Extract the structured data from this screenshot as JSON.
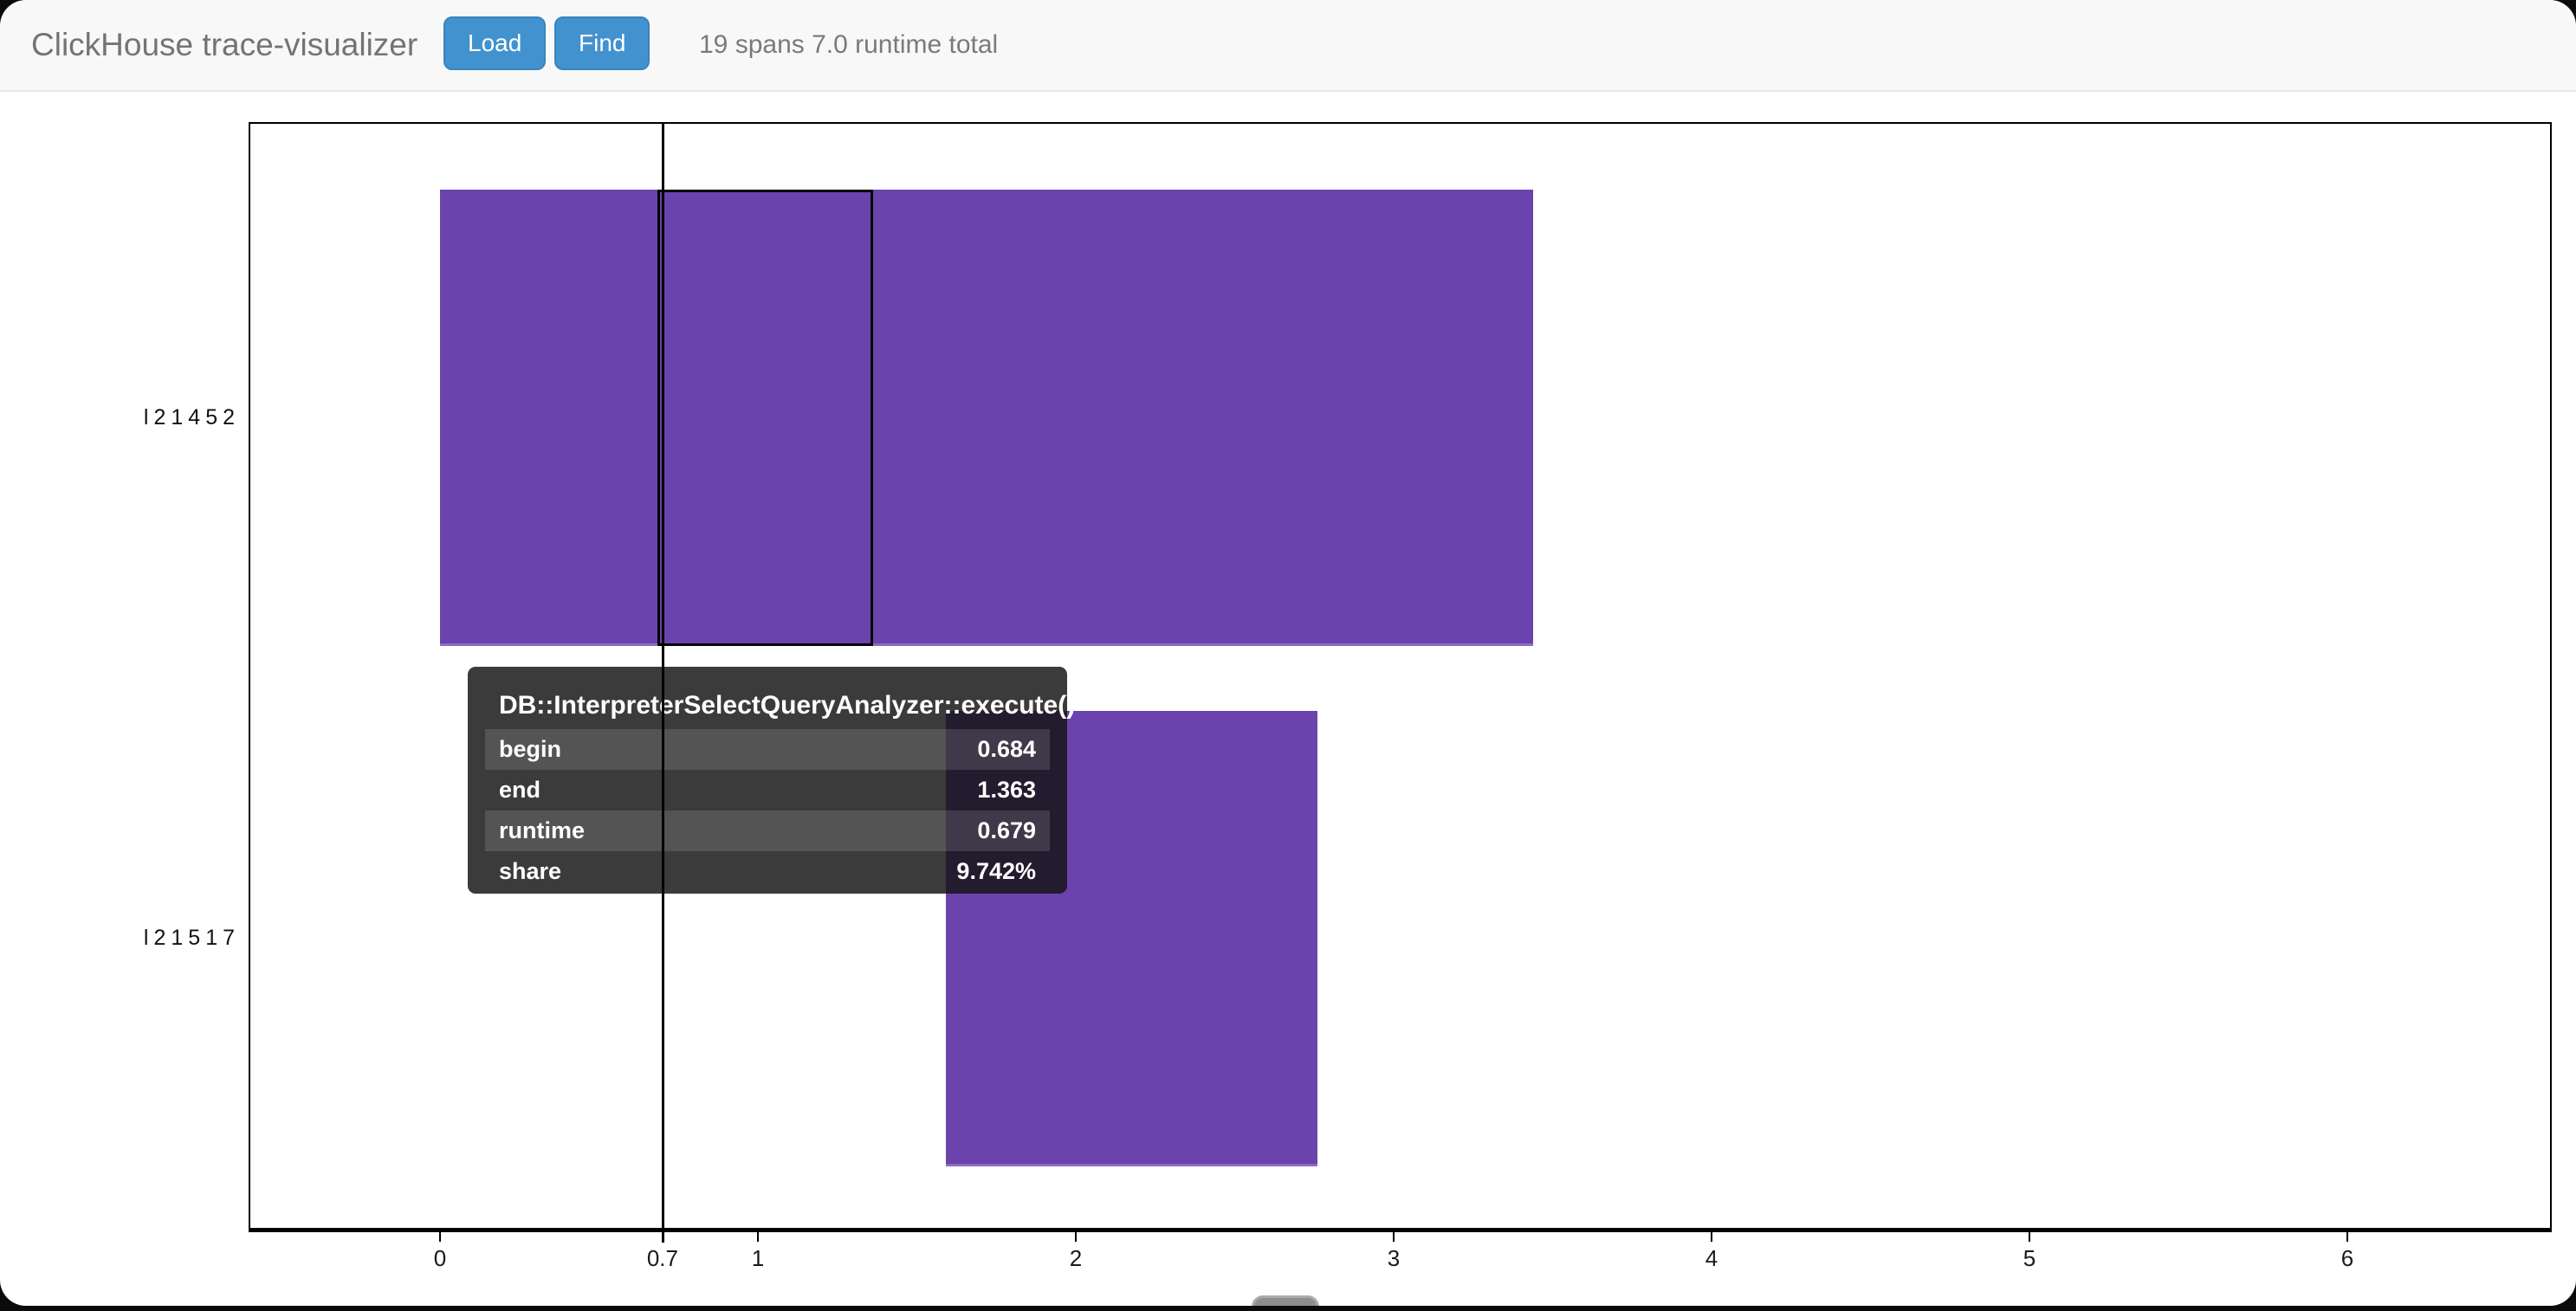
{
  "app": {
    "title": "ClickHouse trace-visualizer",
    "buttons": [
      {
        "label": "Load"
      },
      {
        "label": "Find"
      }
    ],
    "status": "19 spans 7.0 runtime total"
  },
  "tooltip": {
    "title": "DB::InterpreterSelectQueryAnalyzer::execute()",
    "rows": [
      {
        "label": "begin",
        "value": "0.684"
      },
      {
        "label": "end",
        "value": "1.363"
      },
      {
        "label": "runtime",
        "value": "0.679"
      },
      {
        "label": "share",
        "value": "9.742%"
      }
    ]
  },
  "chart_data": {
    "type": "bar",
    "subtype": "gantt-trace",
    "title": "",
    "xlabel": "",
    "ylabel": "",
    "axis": {
      "min": -0.6,
      "max": 6.64,
      "grid": false
    },
    "x_ticks": [
      {
        "v": 0,
        "label": "0"
      },
      {
        "v": 1,
        "label": "1"
      },
      {
        "v": 2,
        "label": "2"
      },
      {
        "v": 3,
        "label": "3"
      },
      {
        "v": 4,
        "label": "4"
      },
      {
        "v": 5,
        "label": "5"
      },
      {
        "v": 6,
        "label": "6"
      }
    ],
    "cursor": {
      "v": 0.7,
      "label": "0.7"
    },
    "rows": [
      {
        "label": "l21452",
        "spans": [
          {
            "begin": 0.0,
            "end": 3.44
          }
        ],
        "highlight": {
          "begin": 0.684,
          "end": 1.363,
          "name": "DB::InterpreterSelectQueryAnalyzer::execute()"
        }
      },
      {
        "label": "l21517",
        "spans": [
          {
            "begin": 1.59,
            "end": 2.76
          }
        ]
      }
    ],
    "totals": {
      "span_count": 19,
      "runtime_total": 7.0
    },
    "colors": {
      "bar": "#6b43ad",
      "bar_edge": "rgba(170,140,215,0.55)",
      "highlight_outline": "#000000",
      "cursor_line": "#000000"
    }
  }
}
